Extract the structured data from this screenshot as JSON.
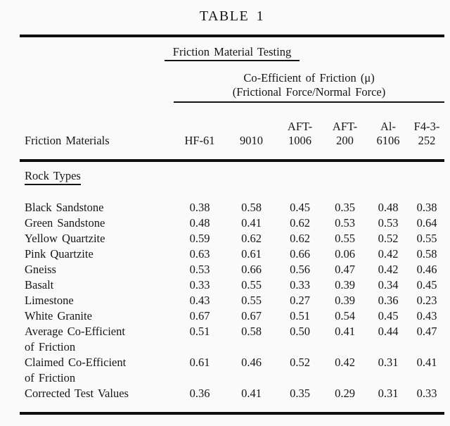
{
  "page": {
    "title": "TABLE 1",
    "subtitle": "Friction Material Testing",
    "group_header": {
      "line1": "Co-Efficient of Friction (μ)",
      "line2": "(Frictional Force/Normal Force)"
    },
    "columns": {
      "label_header": "Friction Materials",
      "data_headers": [
        "HF-61",
        "9010",
        "AFT-\n1006",
        "AFT-\n200",
        "Al-\n6106",
        "F4-3-\n252"
      ]
    },
    "section_label": "Rock Types",
    "rows": [
      {
        "label": "Black Sandstone",
        "values": [
          "0.38",
          "0.58",
          "0.45",
          "0.35",
          "0.48",
          "0.38"
        ]
      },
      {
        "label": "Green Sandstone",
        "values": [
          "0.48",
          "0.41",
          "0.62",
          "0.53",
          "0.53",
          "0.64"
        ]
      },
      {
        "label": "Yellow Quartzite",
        "values": [
          "0.59",
          "0.62",
          "0.62",
          "0.55",
          "0.52",
          "0.55"
        ]
      },
      {
        "label": "Pink Quartzite",
        "values": [
          "0.63",
          "0.61",
          "0.66",
          "0.06",
          "0.42",
          "0.58"
        ]
      },
      {
        "label": "Gneiss",
        "values": [
          "0.53",
          "0.66",
          "0.56",
          "0.47",
          "0.42",
          "0.46"
        ]
      },
      {
        "label": "Basalt",
        "values": [
          "0.33",
          "0.55",
          "0.33",
          "0.39",
          "0.34",
          "0.45"
        ]
      },
      {
        "label": "Limestone",
        "values": [
          "0.43",
          "0.55",
          "0.27",
          "0.39",
          "0.36",
          "0.23"
        ]
      },
      {
        "label": "White Granite",
        "values": [
          "0.67",
          "0.67",
          "0.51",
          "0.54",
          "0.45",
          "0.43"
        ]
      },
      {
        "label": "Average Co-Efficient\nof Friction",
        "values": [
          "0.51",
          "0.58",
          "0.50",
          "0.41",
          "0.44",
          "0.47"
        ]
      },
      {
        "label": "Claimed Co-Efficient\nof Friction",
        "values": [
          "0.61",
          "0.46",
          "0.52",
          "0.42",
          "0.31",
          "0.41"
        ]
      },
      {
        "label": "Corrected Test Values",
        "values": [
          "0.36",
          "0.41",
          "0.35",
          "0.29",
          "0.31",
          "0.33"
        ]
      }
    ],
    "colors": {
      "background": "#fafafa",
      "text": "#161616",
      "rule": "#0e0e0e"
    }
  }
}
